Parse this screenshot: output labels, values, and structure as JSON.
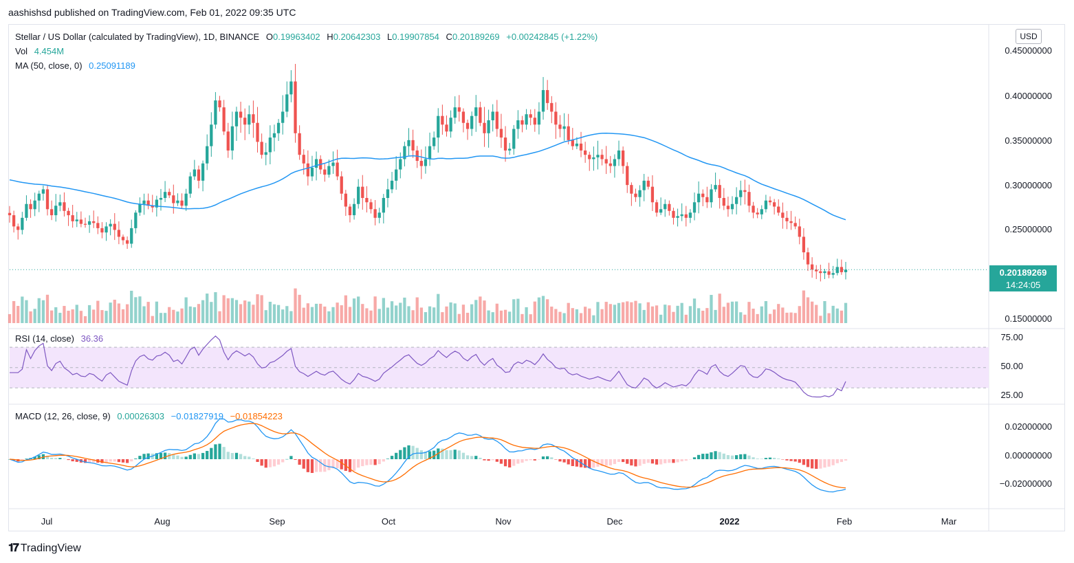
{
  "header": {
    "published": "aashishsd published on TradingView.com, Feb 01, 2022 09:35 UTC"
  },
  "legend": {
    "symbol": "Stellar / US Dollar (calculated by TradingView), 1D, BINANCE",
    "o_label": "O",
    "o_value": "0.19963402",
    "h_label": "H",
    "h_value": "0.20642303",
    "l_label": "L",
    "l_value": "0.19907854",
    "c_label": "C",
    "c_value": "0.20189269",
    "change": "+0.00242845 (+1.22%)",
    "vol_label": "Vol",
    "vol_value": "4.454M",
    "ma_label": "MA (50, close, 0)",
    "ma_value": "0.25091189",
    "rsi_label": "RSI (14, close)",
    "rsi_value": "36.36",
    "macd_label": "MACD (12, 26, close, 9)",
    "macd_hist": "0.00026303",
    "macd_line": "−0.01827919",
    "macd_signal": "−0.01854223"
  },
  "currency": "USD",
  "last_price": {
    "price": "0.20189269",
    "countdown": "14:24:05"
  },
  "price_axis": [
    "0.45000000",
    "0.40000000",
    "0.35000000",
    "0.30000000",
    "0.25000000",
    "0.15000000"
  ],
  "rsi_axis": [
    "75.00",
    "50.00",
    "25.00"
  ],
  "macd_axis": [
    "0.02000000",
    "0.00000000",
    "−0.02000000"
  ],
  "time_axis": [
    {
      "label": "Jul",
      "bold": false
    },
    {
      "label": "Aug",
      "bold": false
    },
    {
      "label": "Sep",
      "bold": false
    },
    {
      "label": "Oct",
      "bold": false
    },
    {
      "label": "Nov",
      "bold": false
    },
    {
      "label": "Dec",
      "bold": false
    },
    {
      "label": "2022",
      "bold": true
    },
    {
      "label": "Feb",
      "bold": false
    },
    {
      "label": "Mar",
      "bold": false
    }
  ],
  "brand": "TradingView",
  "colors": {
    "up": "#26a69a",
    "down": "#ef5350",
    "ma": "#2196f3",
    "rsi": "#7e57c2",
    "rsi_band": "#f3e5fc",
    "macd": "#2196f3",
    "signal": "#ff6d00"
  },
  "chart_data": {
    "type": "candlestick",
    "title": "Stellar / US Dollar, 1D, BINANCE",
    "ylim": [
      0.14,
      0.465
    ],
    "start_date": "2021-06-17",
    "end_date": "2022-02-01",
    "closes": [
      0.265,
      0.252,
      0.248,
      0.262,
      0.278,
      0.272,
      0.282,
      0.29,
      0.295,
      0.272,
      0.265,
      0.276,
      0.28,
      0.27,
      0.265,
      0.258,
      0.26,
      0.255,
      0.254,
      0.258,
      0.256,
      0.25,
      0.245,
      0.252,
      0.255,
      0.248,
      0.24,
      0.236,
      0.232,
      0.25,
      0.268,
      0.278,
      0.282,
      0.276,
      0.274,
      0.283,
      0.285,
      0.292,
      0.288,
      0.279,
      0.282,
      0.276,
      0.29,
      0.31,
      0.318,
      0.305,
      0.325,
      0.345,
      0.37,
      0.398,
      0.39,
      0.362,
      0.34,
      0.368,
      0.385,
      0.378,
      0.37,
      0.382,
      0.372,
      0.35,
      0.335,
      0.338,
      0.355,
      0.36,
      0.372,
      0.385,
      0.405,
      0.42,
      0.36,
      0.335,
      0.325,
      0.31,
      0.32,
      0.33,
      0.318,
      0.312,
      0.322,
      0.326,
      0.31,
      0.29,
      0.275,
      0.265,
      0.278,
      0.298,
      0.285,
      0.28,
      0.272,
      0.262,
      0.268,
      0.285,
      0.295,
      0.305,
      0.318,
      0.33,
      0.345,
      0.352,
      0.34,
      0.328,
      0.322,
      0.33,
      0.345,
      0.355,
      0.38,
      0.37,
      0.362,
      0.378,
      0.39,
      0.385,
      0.372,
      0.365,
      0.38,
      0.39,
      0.372,
      0.36,
      0.375,
      0.385,
      0.365,
      0.355,
      0.34,
      0.342,
      0.365,
      0.375,
      0.37,
      0.382,
      0.378,
      0.37,
      0.385,
      0.41,
      0.395,
      0.385,
      0.37,
      0.365,
      0.368,
      0.352,
      0.345,
      0.348,
      0.34,
      0.335,
      0.33,
      0.332,
      0.335,
      0.33,
      0.325,
      0.322,
      0.33,
      0.34,
      0.322,
      0.3,
      0.29,
      0.286,
      0.294,
      0.305,
      0.298,
      0.28,
      0.268,
      0.272,
      0.278,
      0.27,
      0.262,
      0.264,
      0.266,
      0.262,
      0.268,
      0.28,
      0.29,
      0.286,
      0.28,
      0.295,
      0.3,
      0.285,
      0.276,
      0.272,
      0.278,
      0.286,
      0.294,
      0.292,
      0.276,
      0.268,
      0.266,
      0.272,
      0.282,
      0.28,
      0.275,
      0.268,
      0.262,
      0.258,
      0.256,
      0.252,
      0.24,
      0.222,
      0.208,
      0.202,
      0.2,
      0.198,
      0.2,
      0.196,
      0.198,
      0.205,
      0.199,
      0.202
    ],
    "ma_50_endpoints": {
      "start": 0.306,
      "end": 0.251
    },
    "last_close": 0.20189269,
    "volume_last": "4.454M",
    "rsi": {
      "ylim": [
        20,
        85
      ],
      "upper": 70,
      "lower": 30,
      "last": 36.36
    },
    "macd": {
      "ylim": [
        -0.034,
        0.034
      ],
      "last_hist": 0.00026303,
      "last_macd": -0.01827919,
      "last_signal": -0.01854223
    }
  }
}
